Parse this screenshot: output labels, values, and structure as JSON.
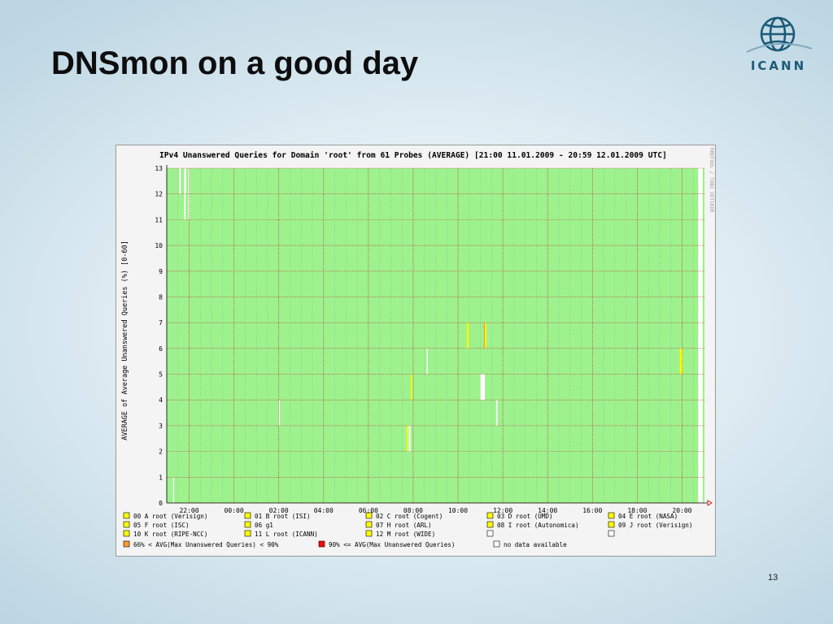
{
  "slide": {
    "title": "DNSmon on a good day",
    "page_number": "13",
    "logo_text": "ICANN"
  },
  "chart_data": {
    "type": "heatmap",
    "title": "IPv4 Unanswered Queries for Domain 'root' from 61 Probes (AVERAGE)  [21:00 11.01.2009 - 20:59 12.01.2009 UTC]",
    "ylabel": "AVERAGE of Average Unanswered Queries (%) [0-60]",
    "xlabel": "",
    "watermark": "RRDTOOL / TOBI OETIKER",
    "y_ticks": [
      "0",
      "1",
      "2",
      "3",
      "4",
      "5",
      "6",
      "7",
      "8",
      "9",
      "10",
      "11",
      "12",
      "13"
    ],
    "x_ticks": [
      "22:00",
      "00:00",
      "02:00",
      "04:00",
      "06:00",
      "08:00",
      "10:00",
      "12:00",
      "14:00",
      "16:00",
      "18:00",
      "20:00"
    ],
    "x_range_hours": [
      0,
      24
    ],
    "y_range": [
      0,
      13
    ],
    "grid": true,
    "colors": {
      "ok": "#9df28d",
      "grid_major": "#cc3333",
      "grid_minor": "#888888",
      "medium": "#ff9933",
      "high": "#ff0000",
      "warning": "#ffff00",
      "no_data": "#ffffff"
    },
    "legend": [
      {
        "label": "00 A root (Verisign)",
        "color": "#ffff00"
      },
      {
        "label": "01 B root (ISI)",
        "color": "#ffff00"
      },
      {
        "label": "02 C root (Cogent)",
        "color": "#ffff00"
      },
      {
        "label": "03 D root (UMD)",
        "color": "#ffff00"
      },
      {
        "label": "04 E root (NASA)",
        "color": "#ffff00"
      },
      {
        "label": "05 F root (ISC)",
        "color": "#ffff00"
      },
      {
        "label": "06 g1",
        "color": "#ffff00"
      },
      {
        "label": "07 H root (ARL)",
        "color": "#ffff00"
      },
      {
        "label": "08 I root (Autonomica)",
        "color": "#ffff00"
      },
      {
        "label": "09 J root (Verisign)",
        "color": "#ffff00"
      },
      {
        "label": "10 K root (RIPE-NCC)",
        "color": "#ffff00"
      },
      {
        "label": "11 L root (ICANN)",
        "color": "#ffff00"
      },
      {
        "label": "12 M root (WIDE)",
        "color": "#ffff00"
      },
      {
        "label": "",
        "color": "#ffffff"
      },
      {
        "label": "",
        "color": "#ffffff"
      }
    ],
    "severity_legend": [
      {
        "label": "66% < AVG(Max Unanswered Queries) < 90%",
        "color": "#ff9933"
      },
      {
        "label": "90% <= AVG(Max Unanswered Queries)",
        "color": "#ff0000"
      },
      {
        "label": "no data available",
        "color": "#ffffff"
      }
    ],
    "no_data_cells": [
      {
        "hour": 0.55,
        "row": 12,
        "duration": 0.08
      },
      {
        "hour": 0.78,
        "row": 12,
        "duration": 0.08
      },
      {
        "hour": 0.96,
        "row": 12,
        "duration": 0.06
      },
      {
        "hour": 0.78,
        "row": 11,
        "duration": 0.06
      },
      {
        "hour": 0.96,
        "row": 11,
        "duration": 0.06
      },
      {
        "hour": 0.28,
        "row": 0,
        "duration": 0.05
      },
      {
        "hour": 5.0,
        "row": 3,
        "duration": 0.05
      },
      {
        "hour": 10.8,
        "row": 2,
        "duration": 0.08
      },
      {
        "hour": 11.6,
        "row": 5,
        "duration": 0.05
      },
      {
        "hour": 14.0,
        "row": 4,
        "duration": 0.2
      },
      {
        "hour": 14.7,
        "row": 3,
        "duration": 0.06
      },
      {
        "hour": 23.72,
        "row": 0,
        "duration": 0.2
      },
      {
        "hour": 23.72,
        "row": 1,
        "duration": 0.2
      },
      {
        "hour": 23.72,
        "row": 2,
        "duration": 0.2
      },
      {
        "hour": 23.72,
        "row": 3,
        "duration": 0.2
      },
      {
        "hour": 23.72,
        "row": 4,
        "duration": 0.2
      },
      {
        "hour": 23.72,
        "row": 5,
        "duration": 0.2
      },
      {
        "hour": 23.72,
        "row": 6,
        "duration": 0.2
      },
      {
        "hour": 23.72,
        "row": 7,
        "duration": 0.2
      },
      {
        "hour": 23.72,
        "row": 8,
        "duration": 0.2
      },
      {
        "hour": 23.72,
        "row": 9,
        "duration": 0.2
      },
      {
        "hour": 23.72,
        "row": 10,
        "duration": 0.2
      },
      {
        "hour": 23.72,
        "row": 11,
        "duration": 0.2
      },
      {
        "hour": 23.72,
        "row": 12,
        "duration": 0.2
      }
    ],
    "warning_cells": [
      {
        "hour": 13.4,
        "row": 6,
        "duration": 0.08
      },
      {
        "hour": 14.2,
        "row": 6,
        "duration": 0.06
      },
      {
        "hour": 22.9,
        "row": 5,
        "duration": 0.12
      },
      {
        "hour": 10.7,
        "row": 2,
        "duration": 0.06
      },
      {
        "hour": 10.9,
        "row": 4,
        "duration": 0.06
      }
    ],
    "medium_cells": [
      {
        "hour": 14.15,
        "row": 6,
        "duration": 0.05
      }
    ]
  }
}
